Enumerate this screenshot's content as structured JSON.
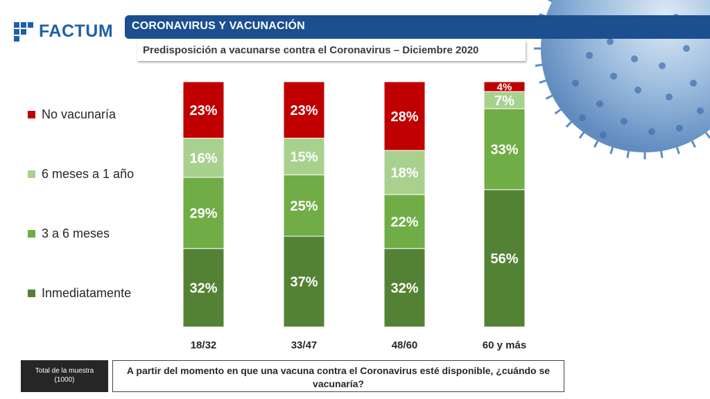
{
  "brand": {
    "name": "FACTUM"
  },
  "header": {
    "title": "CORONAVIRUS Y VACUNACIÓN",
    "subtitle": "Predisposición a vacunarse contra el Coronavirus – Diciembre 2020"
  },
  "chart_data": {
    "type": "bar",
    "stacked": true,
    "title": "Predisposición a vacunarse contra el Coronavirus – Diciembre 2020",
    "categories": [
      "18/32",
      "33/47",
      "48/60",
      "60 y más"
    ],
    "series": [
      {
        "name": "Inmediatamente",
        "color": "#548235",
        "values": [
          32,
          37,
          32,
          56
        ]
      },
      {
        "name": "3 a 6 meses",
        "color": "#70ad47",
        "values": [
          29,
          25,
          22,
          33
        ]
      },
      {
        "name": "6 meses a 1 año",
        "color": "#a9d18e",
        "values": [
          16,
          15,
          18,
          7
        ]
      },
      {
        "name": "No vacunaría",
        "color": "#c00000",
        "values": [
          23,
          23,
          28,
          4
        ]
      }
    ],
    "value_suffix": "%",
    "legend_order": [
      "No vacunaría",
      "6 meses a 1 año",
      "3 a 6 meses",
      "Inmediatamente"
    ],
    "legend_position": "left",
    "ylim": [
      0,
      100
    ]
  },
  "footer": {
    "sample_label": "Total de la muestra",
    "sample_value": "(1000)",
    "question": "A partir del momento en que una vacuna contra el Coronavirus  esté disponible, ¿cuándo se vacunaría?"
  }
}
